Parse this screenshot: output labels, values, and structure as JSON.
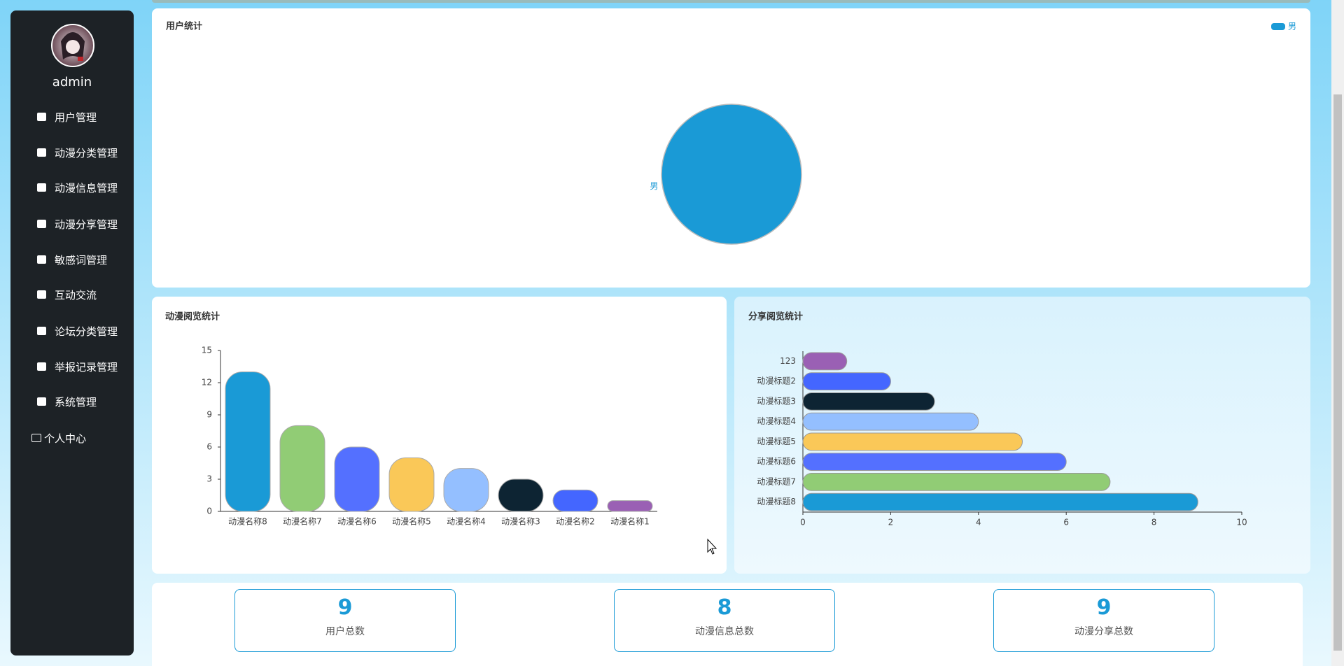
{
  "sidebar": {
    "user": "admin",
    "menu": [
      "用户管理",
      "动漫分类管理",
      "动漫信息管理",
      "动漫分享管理",
      "敏感词管理",
      "互动交流",
      "论坛分类管理",
      "举报记录管理",
      "系统管理",
      "个人中心"
    ]
  },
  "chart_data": [
    {
      "type": "pie",
      "title": "用户统计",
      "categories": [
        "男"
      ],
      "values": [
        100
      ],
      "colors": [
        "#1a9ad6"
      ],
      "legend": "top-right"
    },
    {
      "type": "bar",
      "title": "动漫阅览统计",
      "categories": [
        "动漫名称8",
        "动漫名称7",
        "动漫名称6",
        "动漫名称5",
        "动漫名称4",
        "动漫名称3",
        "动漫名称2",
        "动漫名称1"
      ],
      "values": [
        13,
        8,
        6,
        5,
        4,
        3,
        2,
        1
      ],
      "colors": [
        "#1a9ad6",
        "#91cc75",
        "#5470ff",
        "#fac858",
        "#94bfff",
        "#0d2433",
        "#4466ff",
        "#9a60b4"
      ],
      "ylim": [
        0,
        15
      ],
      "yticks": [
        0,
        3,
        6,
        9,
        12,
        15
      ]
    },
    {
      "type": "bar",
      "horizontal": true,
      "title": "分享阅览统计",
      "categories": [
        "动漫标题8",
        "动漫标题7",
        "动漫标题6",
        "动漫标题5",
        "动漫标题4",
        "动漫标题3",
        "动漫标题2",
        "123"
      ],
      "values": [
        9,
        7,
        6,
        5,
        4,
        3,
        2,
        1
      ],
      "colors": [
        "#1a9ad6",
        "#91cc75",
        "#5470ff",
        "#fac858",
        "#94bfff",
        "#0d2433",
        "#4466ff",
        "#9a60b4"
      ],
      "xlim": [
        0,
        10
      ],
      "xticks": [
        0,
        2,
        4,
        6,
        8,
        10
      ]
    }
  ],
  "stats": [
    {
      "value": "9",
      "label": "用户总数"
    },
    {
      "value": "8",
      "label": "动漫信息总数"
    },
    {
      "value": "9",
      "label": "动漫分享总数"
    }
  ]
}
